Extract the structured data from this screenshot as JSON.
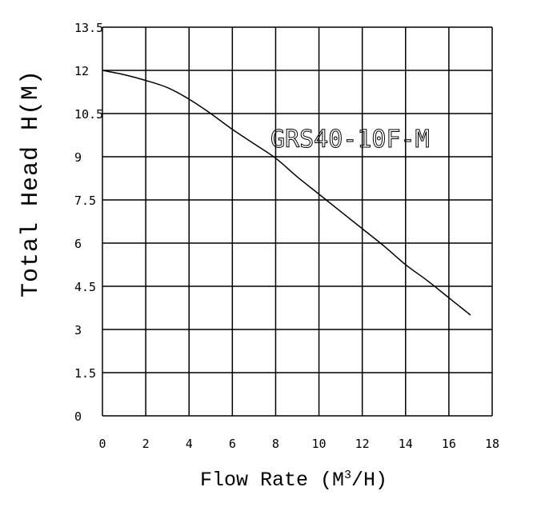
{
  "chart_data": {
    "type": "line",
    "title": "",
    "xlabel_main": "Flow Rate (M",
    "xlabel_sup": "3",
    "xlabel_tail": "/H)",
    "ylabel": "Total Head H(M)",
    "xlim": [
      0,
      18
    ],
    "ylim": [
      0,
      13.5
    ],
    "x_ticks": [
      0,
      2,
      4,
      6,
      8,
      10,
      12,
      14,
      16,
      18
    ],
    "y_ticks": [
      0,
      1.5,
      3,
      4.5,
      6,
      7.5,
      9,
      10.5,
      12,
      13.5
    ],
    "grid": true,
    "series": [
      {
        "name": "GRS40-10F-M",
        "x": [
          0,
          1,
          2,
          3,
          4,
          5,
          6,
          7,
          8,
          9,
          10,
          11,
          12,
          13,
          14,
          15,
          16,
          17
        ],
        "y": [
          12.0,
          11.85,
          11.65,
          11.4,
          11.0,
          10.5,
          9.95,
          9.45,
          8.95,
          8.3,
          7.7,
          7.1,
          6.5,
          5.9,
          5.25,
          4.7,
          4.1,
          3.5
        ]
      }
    ]
  }
}
